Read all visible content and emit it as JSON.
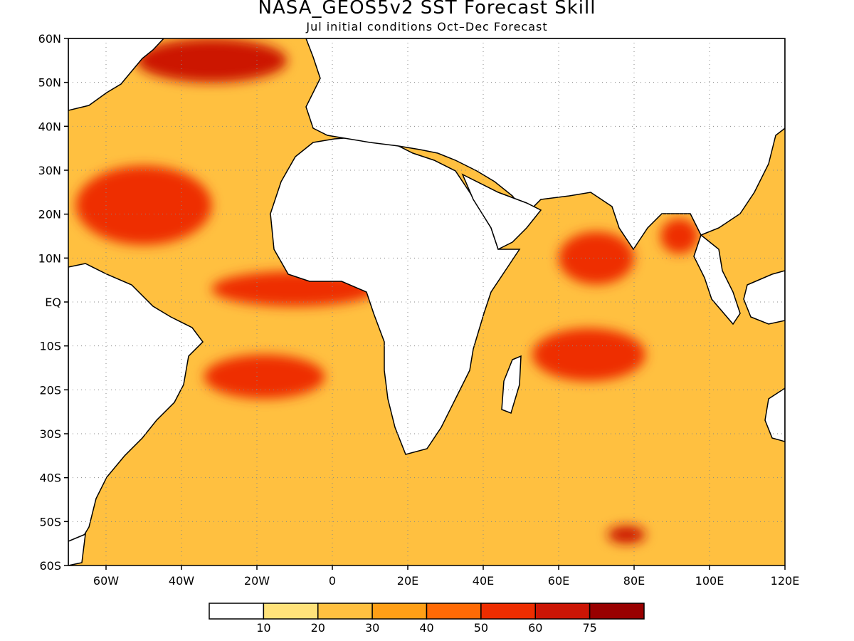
{
  "title": "NASA_GEOS5v2 SST Forecast Skill",
  "subtitle": "Jul initial conditions  Oct–Dec Forecast",
  "map": {
    "lon_range": [
      -70,
      120
    ],
    "lat_range": [
      -60,
      60
    ],
    "lat_labels": [
      {
        "lat": 60,
        "label": "60N"
      },
      {
        "lat": 50,
        "label": "50N"
      },
      {
        "lat": 40,
        "label": "40N"
      },
      {
        "lat": 30,
        "label": "30N"
      },
      {
        "lat": 20,
        "label": "20N"
      },
      {
        "lat": 10,
        "label": "10N"
      },
      {
        "lat": 0,
        "label": "EQ"
      },
      {
        "lat": -10,
        "label": "10S"
      },
      {
        "lat": -20,
        "label": "20S"
      },
      {
        "lat": -30,
        "label": "30S"
      },
      {
        "lat": -40,
        "label": "40S"
      },
      {
        "lat": -50,
        "label": "50S"
      },
      {
        "lat": -60,
        "label": "60S"
      }
    ],
    "lon_labels": [
      {
        "lon": -60,
        "label": "60W"
      },
      {
        "lon": -40,
        "label": "40W"
      },
      {
        "lon": -20,
        "label": "20W"
      },
      {
        "lon": 0,
        "label": "0"
      },
      {
        "lon": 20,
        "label": "20E"
      },
      {
        "lon": 40,
        "label": "40E"
      },
      {
        "lon": 60,
        "label": "60E"
      },
      {
        "lon": 80,
        "label": "80E"
      },
      {
        "lon": 100,
        "label": "100E"
      },
      {
        "lon": 120,
        "label": "120E"
      }
    ],
    "grid": true,
    "land_color": "#ffffff",
    "coastline_color": "#000000"
  },
  "colorbar": {
    "colors": [
      "#ffffff",
      "#ffe27a",
      "#ffc040",
      "#ff9f16",
      "#ff6a05",
      "#ee2d00",
      "#cc1505",
      "#990000"
    ],
    "labels": [
      "10",
      "20",
      "30",
      "40",
      "50",
      "60",
      "75"
    ]
  },
  "regions": [
    {
      "name": "north-atlantic-high",
      "level": 6,
      "lon": -32,
      "lat": 55,
      "rx": 20,
      "ry": 5
    },
    {
      "name": "subtropical-north-atlantic",
      "level": 5,
      "lon": -50,
      "lat": 22,
      "rx": 18,
      "ry": 9
    },
    {
      "name": "equatorial-atlantic",
      "level": 5,
      "lon": -10,
      "lat": 3,
      "rx": 22,
      "ry": 4
    },
    {
      "name": "south-atlantic",
      "level": 5,
      "lon": -18,
      "lat": -17,
      "rx": 16,
      "ry": 5
    },
    {
      "name": "arabian-sea",
      "level": 5,
      "lon": 70,
      "lat": 10,
      "rx": 10,
      "ry": 6
    },
    {
      "name": "tropical-indian-ocean",
      "level": 5,
      "lon": 68,
      "lat": -12,
      "rx": 15,
      "ry": 6
    },
    {
      "name": "bay-of-bengal",
      "level": 5,
      "lon": 92,
      "lat": 15,
      "rx": 5,
      "ry": 4
    },
    {
      "name": "southern-indian-ocean",
      "level": 6,
      "lon": 78,
      "lat": -53,
      "rx": 5,
      "ry": 2
    }
  ]
}
